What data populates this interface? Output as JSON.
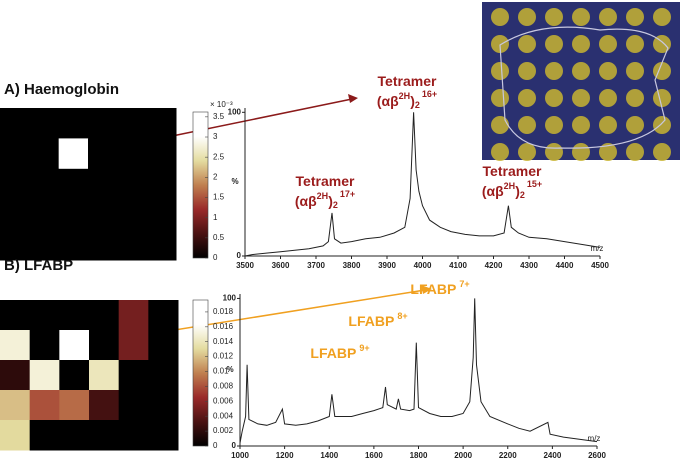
{
  "chart_data": [
    {
      "type": "heatmap",
      "title": "A) Haemoglobin",
      "values": [
        [
          0,
          0,
          0,
          0,
          0,
          0
        ],
        [
          0,
          0,
          3.5,
          0,
          0,
          0
        ],
        [
          0,
          0,
          0,
          0,
          0,
          0
        ],
        [
          0,
          0,
          0,
          0,
          0,
          0
        ],
        [
          0,
          0,
          0,
          0,
          0,
          0
        ]
      ],
      "colormap": [
        "#000000",
        "#4a1212",
        "#9a2a2a",
        "#c08050",
        "#e4dca0",
        "#ffffff",
        "#ffffff"
      ],
      "ylim": [
        0,
        3.62
      ],
      "yticks": [
        0,
        0.5,
        1,
        1.5,
        2,
        2.5,
        3,
        3.5
      ],
      "scale_label": "× 10⁻³"
    },
    {
      "type": "line",
      "color": "#222222",
      "x": [
        3500,
        3520,
        3560,
        3600,
        3640,
        3680,
        3720,
        3735,
        3745,
        3752,
        3770,
        3800,
        3840,
        3880,
        3920,
        3950,
        3965,
        3975,
        3982,
        3990,
        4000,
        4020,
        4050,
        4080,
        4120,
        4160,
        4200,
        4230,
        4242,
        4250,
        4270,
        4300,
        4350,
        4400,
        4450,
        4500
      ],
      "values": [
        0,
        1,
        2,
        3,
        4,
        5,
        7,
        10,
        30,
        12,
        9,
        10,
        12,
        13,
        16,
        20,
        40,
        100,
        60,
        45,
        35,
        25,
        20,
        17,
        15,
        14,
        14,
        16,
        35,
        20,
        16,
        13,
        12,
        10,
        8,
        6
      ],
      "xlim": [
        3500,
        4500
      ],
      "xticks": [
        3500,
        3600,
        3700,
        3800,
        3900,
        4000,
        4100,
        4200,
        4300,
        4400,
        4500
      ],
      "ylim": [
        0,
        103
      ],
      "yticks": [
        0,
        100
      ],
      "ylabel": "%",
      "xlabel": "m/z",
      "annotations": [
        {
          "text": "Tetramer",
          "open": "(αβ",
          "sup": "2H",
          "close": ")",
          "sub": "2",
          "charge": "16+"
        },
        {
          "text": "Tetramer",
          "open": "(αβ",
          "sup": "2H",
          "close": ")",
          "sub": "2",
          "charge": "17+"
        },
        {
          "text": "Tetramer",
          "open": "(αβ",
          "sup": "2H",
          "close": ")",
          "sub": "2",
          "charge": "15+"
        }
      ],
      "annotation_color": "#9b1c1c"
    },
    {
      "type": "heatmap",
      "title": "B) LFABP",
      "values": [
        [
          0,
          0,
          0,
          0,
          0.005,
          0
        ],
        [
          0.015,
          0,
          0.018,
          0,
          0.005,
          0
        ],
        [
          0.002,
          0.015,
          0,
          0.014,
          0,
          0
        ],
        [
          0.012,
          0.008,
          0.009,
          0.003,
          0,
          0
        ],
        [
          0.013,
          0,
          0,
          0,
          0,
          0
        ]
      ],
      "colormap": [
        "#000000",
        "#4a1212",
        "#9a2a2a",
        "#c08050",
        "#e4dca0",
        "#ffffff",
        "#ffffff"
      ],
      "ylim": [
        0,
        0.0196
      ],
      "yticks": [
        0,
        0.002,
        0.004,
        0.006,
        0.008,
        0.01,
        0.012,
        0.014,
        0.016,
        0.018
      ]
    },
    {
      "type": "line",
      "color": "#222222",
      "x": [
        1000,
        1010,
        1025,
        1032,
        1040,
        1080,
        1120,
        1160,
        1190,
        1200,
        1250,
        1300,
        1350,
        1400,
        1412,
        1425,
        1500,
        1550,
        1600,
        1640,
        1652,
        1660,
        1700,
        1710,
        1720,
        1760,
        1780,
        1790,
        1800,
        1850,
        1900,
        1950,
        2000,
        2030,
        2045,
        2052,
        2060,
        2080,
        2120,
        2200,
        2250,
        2300,
        2380,
        2390,
        2450,
        2500,
        2550,
        2600
      ],
      "values": [
        2,
        10,
        20,
        55,
        18,
        15,
        14,
        16,
        25,
        15,
        14,
        15,
        17,
        20,
        35,
        20,
        20,
        22,
        24,
        26,
        40,
        28,
        25,
        32,
        25,
        24,
        25,
        70,
        26,
        22,
        20,
        20,
        22,
        30,
        60,
        100,
        55,
        30,
        20,
        15,
        12,
        10,
        16,
        8,
        6,
        5,
        4,
        3
      ],
      "xlim": [
        1000,
        2600
      ],
      "xticks": [
        1000,
        1200,
        1400,
        1600,
        1800,
        2000,
        2200,
        2400,
        2600
      ],
      "ylim": [
        0,
        103
      ],
      "yticks": [
        0,
        100
      ],
      "ylabel": "%",
      "xlabel": "m/z",
      "annotations": [
        {
          "text": "LFABP",
          "charge": "7+"
        },
        {
          "text": "LFABP",
          "charge": "8+"
        },
        {
          "text": "LFABP",
          "charge": "9+"
        }
      ],
      "annotation_color": "#f0a020"
    }
  ]
}
